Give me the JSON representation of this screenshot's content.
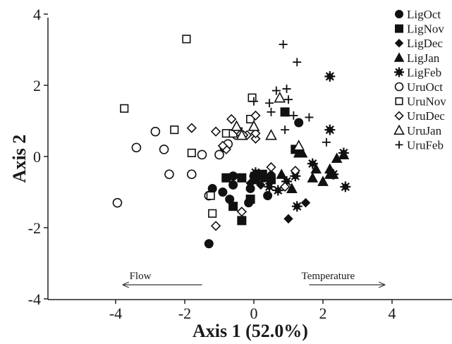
{
  "chart_data": {
    "type": "scatter",
    "xlabel": "Axis 1 (52.0%)",
    "ylabel": "Axis 2",
    "xlim": [
      -5,
      5
    ],
    "ylim": [
      -4,
      4
    ],
    "xticks": [
      "-4",
      "-2",
      "0",
      "2",
      "4"
    ],
    "yticks": [
      "4",
      "2",
      "0",
      "-2",
      "-4"
    ],
    "xtick_values": [
      -4,
      -2,
      0,
      2,
      4
    ],
    "ytick_values": [
      4,
      2,
      0,
      -2,
      -4
    ],
    "grid": false,
    "legend_position": "top-right",
    "annotations": [
      {
        "text": "Flow",
        "direction": "left",
        "x_from": -1.5,
        "x_to": -3.8,
        "y": -3.7
      },
      {
        "text": "Temperature",
        "direction": "right",
        "x_from": 1.6,
        "x_to": 3.8,
        "y": -3.7
      }
    ],
    "series": [
      {
        "name": "LigOct",
        "marker": "circle",
        "filled": true,
        "points": [
          [
            -1.2,
            -0.9
          ],
          [
            -0.9,
            -1.0
          ],
          [
            -0.6,
            -0.8
          ],
          [
            -0.1,
            -0.9
          ],
          [
            0.4,
            -1.1
          ],
          [
            1.3,
            0.95
          ],
          [
            -1.3,
            -2.45
          ],
          [
            -0.7,
            -1.2
          ],
          [
            -0.15,
            -1.3
          ],
          [
            0.0,
            -0.55
          ],
          [
            -0.6,
            -0.55
          ],
          [
            0.3,
            -0.6
          ]
        ]
      },
      {
        "name": "LigNov",
        "marker": "square",
        "filled": true,
        "points": [
          [
            0.9,
            1.25
          ],
          [
            -0.6,
            -1.4
          ],
          [
            -0.35,
            -1.8
          ],
          [
            -0.1,
            -1.2
          ],
          [
            -0.35,
            -0.6
          ],
          [
            0.25,
            -0.5
          ],
          [
            1.2,
            0.2
          ],
          [
            0.5,
            -0.65
          ],
          [
            -0.8,
            -0.6
          ],
          [
            0.05,
            -0.65
          ]
        ]
      },
      {
        "name": "LigDec",
        "marker": "diamond",
        "filled": true,
        "points": [
          [
            1.0,
            -1.75
          ],
          [
            1.5,
            -1.3
          ],
          [
            -0.1,
            -0.75
          ],
          [
            0.5,
            -0.5
          ],
          [
            0.2,
            -0.8
          ]
        ]
      },
      {
        "name": "LigJan",
        "marker": "triangle",
        "filled": true,
        "points": [
          [
            1.3,
            0.1
          ],
          [
            1.4,
            0.1
          ],
          [
            2.3,
            -0.5
          ],
          [
            2.2,
            -0.35
          ],
          [
            1.7,
            -0.6
          ],
          [
            2.0,
            -0.7
          ],
          [
            2.4,
            -0.05
          ],
          [
            1.8,
            -0.35
          ],
          [
            2.6,
            0.05
          ],
          [
            1.1,
            -0.9
          ],
          [
            0.8,
            -0.5
          ],
          [
            2.2,
            -0.5
          ]
        ]
      },
      {
        "name": "LigFeb",
        "marker": "star",
        "filled": true,
        "points": [
          [
            2.2,
            2.25
          ],
          [
            2.2,
            0.75
          ],
          [
            2.6,
            0.1
          ],
          [
            2.65,
            -0.85
          ],
          [
            2.3,
            -0.5
          ],
          [
            1.7,
            -0.2
          ],
          [
            1.25,
            -1.4
          ],
          [
            0.7,
            -0.95
          ],
          [
            0.95,
            -0.7
          ],
          [
            1.2,
            -0.55
          ],
          [
            0.45,
            -0.85
          ],
          [
            0.05,
            -0.45
          ]
        ]
      },
      {
        "name": "UruOct",
        "marker": "circle",
        "filled": false,
        "points": [
          [
            -3.95,
            -1.3
          ],
          [
            -3.4,
            0.25
          ],
          [
            -2.85,
            0.7
          ],
          [
            -2.6,
            0.2
          ],
          [
            -2.45,
            -0.5
          ],
          [
            -1.5,
            0.05
          ],
          [
            -1.8,
            -0.5
          ],
          [
            -1.3,
            -1.1
          ],
          [
            -0.85,
            0.25
          ],
          [
            -0.5,
            0.6
          ],
          [
            -1.0,
            0.05
          ],
          [
            -0.75,
            0.35
          ]
        ]
      },
      {
        "name": "UruNov",
        "marker": "square",
        "filled": false,
        "points": [
          [
            -3.75,
            1.35
          ],
          [
            -1.95,
            3.3
          ],
          [
            -2.3,
            0.75
          ],
          [
            -1.8,
            0.1
          ],
          [
            -1.25,
            -1.1
          ],
          [
            -1.2,
            -1.6
          ],
          [
            -0.8,
            0.65
          ],
          [
            -0.05,
            1.65
          ],
          [
            -0.1,
            1.05
          ],
          [
            -0.45,
            0.7
          ],
          [
            -0.6,
            0.65
          ]
        ]
      },
      {
        "name": "UruDec",
        "marker": "diamond",
        "filled": false,
        "points": [
          [
            -1.8,
            0.8
          ],
          [
            -1.1,
            0.7
          ],
          [
            -0.8,
            0.2
          ],
          [
            -0.5,
            0.75
          ],
          [
            0.05,
            1.15
          ],
          [
            0.05,
            0.5
          ],
          [
            -0.2,
            0.6
          ],
          [
            -0.9,
            0.3
          ],
          [
            0.05,
            0.65
          ],
          [
            -0.35,
            -1.55
          ],
          [
            -1.1,
            -1.95
          ],
          [
            -0.65,
            1.05
          ],
          [
            -0.3,
            0.6
          ],
          [
            0.9,
            -0.85
          ],
          [
            0.5,
            -0.3
          ],
          [
            1.2,
            -0.4
          ]
        ]
      },
      {
        "name": "UruJan",
        "marker": "triangle",
        "filled": false,
        "points": [
          [
            0.0,
            0.85
          ],
          [
            0.5,
            0.6
          ],
          [
            0.75,
            1.65
          ],
          [
            1.3,
            0.3
          ],
          [
            -0.35,
            0.6
          ],
          [
            -0.5,
            0.85
          ]
        ]
      },
      {
        "name": "UruFeb",
        "marker": "plus",
        "filled": false,
        "points": [
          [
            0.85,
            3.15
          ],
          [
            1.25,
            2.65
          ],
          [
            0.95,
            1.9
          ],
          [
            0.65,
            1.85
          ],
          [
            0.45,
            1.5
          ],
          [
            1.0,
            1.6
          ],
          [
            0.5,
            1.25
          ],
          [
            0.9,
            0.75
          ],
          [
            1.15,
            1.15
          ],
          [
            1.6,
            1.1
          ],
          [
            2.1,
            0.4
          ],
          [
            0.0,
            1.55
          ]
        ]
      }
    ]
  }
}
